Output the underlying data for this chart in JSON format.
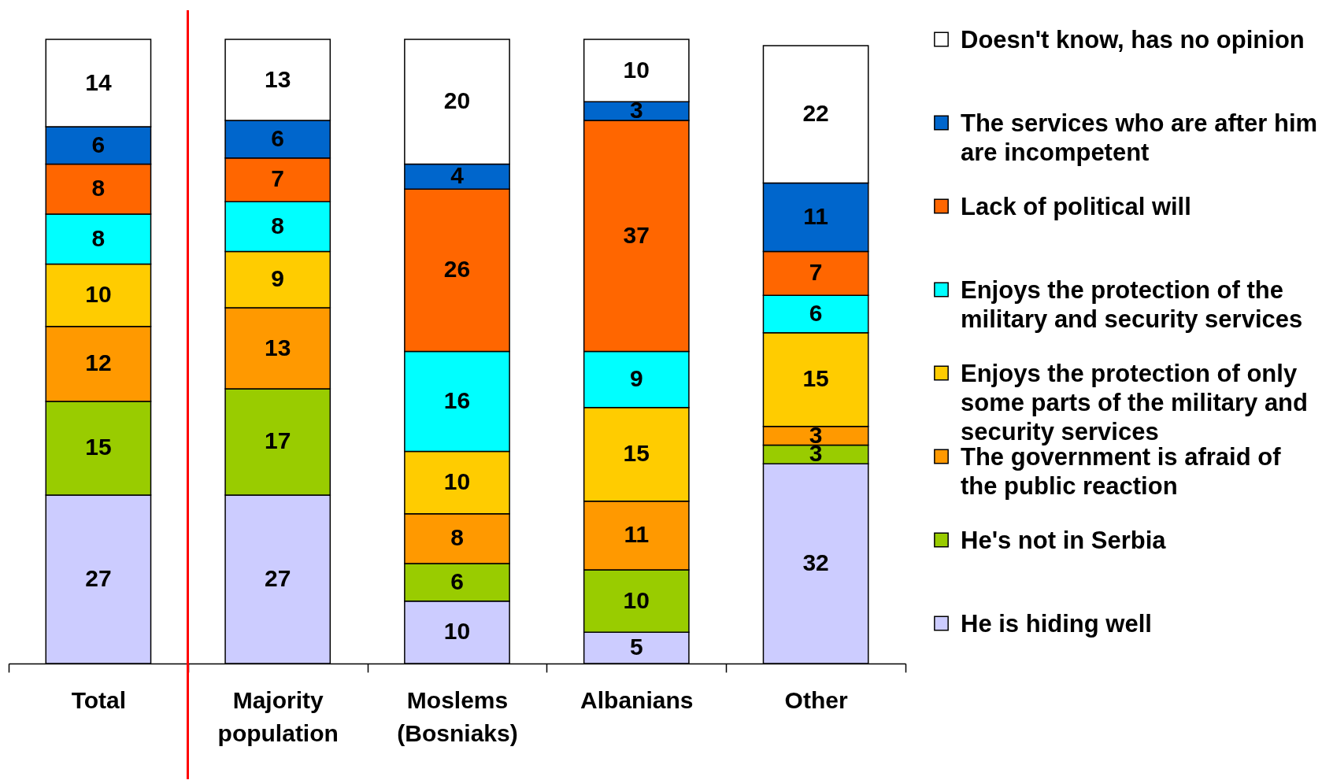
{
  "chart_data": {
    "type": "bar",
    "stacked": true,
    "data_labels": true,
    "legend": "right",
    "categories": [
      "Total",
      "Majority population",
      "Moslems (Bosniaks)",
      "Albanians",
      "Other"
    ],
    "series": [
      {
        "name": "He is hiding well",
        "color": "#ccccff",
        "values": [
          27,
          27,
          10,
          5,
          32
        ]
      },
      {
        "name": "He's not in Serbia",
        "color": "#99cc00",
        "values": [
          15,
          17,
          6,
          10,
          3
        ]
      },
      {
        "name": "The government is afraid of the public reaction",
        "color": "#ff9900",
        "values": [
          12,
          13,
          8,
          11,
          3
        ]
      },
      {
        "name": "Enjoys the protection of only some parts of the military and security services",
        "color": "#ffcc00",
        "values": [
          10,
          9,
          10,
          15,
          15
        ]
      },
      {
        "name": "Enjoys the protection of the military and security services",
        "color": "#00ffff",
        "values": [
          8,
          8,
          16,
          9,
          6
        ]
      },
      {
        "name": "Lack of political will",
        "color": "#ff6600",
        "values": [
          8,
          7,
          26,
          37,
          7
        ]
      },
      {
        "name": "The services who are after him are incompetent",
        "color": "#0066cc",
        "values": [
          6,
          6,
          4,
          3,
          11
        ]
      },
      {
        "name": "Doesn't know, has no opinion",
        "color": "#ffffff",
        "values": [
          14,
          13,
          20,
          10,
          22
        ]
      }
    ]
  }
}
